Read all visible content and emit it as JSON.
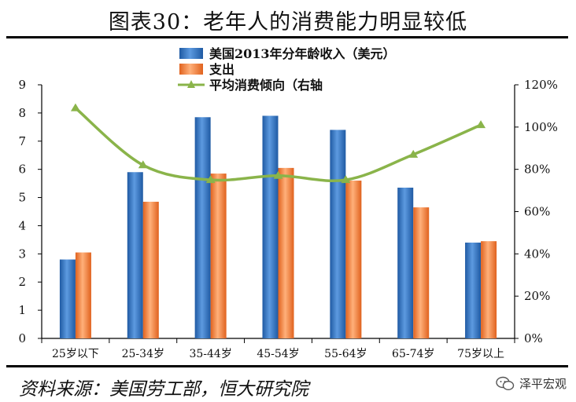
{
  "title": "图表30：老年人的消费能力明显较低",
  "source": "资料来源：美国劳工部，恒大研究院",
  "watermark": "泽平宏观",
  "watermark_icon": "wechat-icon",
  "chart_data": {
    "type": "bar+line",
    "title": "图表30：老年人的消费能力明显较低",
    "categories": [
      "25岁以下",
      "25-34岁",
      "35-44岁",
      "45-54岁",
      "55-64岁",
      "65-74岁",
      "75岁以上"
    ],
    "series": [
      {
        "name": "美国2013年分年龄收入（美元）",
        "type": "bar",
        "axis": "left",
        "color": "#2e6db5",
        "values": [
          2.8,
          5.9,
          7.85,
          7.9,
          7.4,
          5.35,
          3.4
        ]
      },
      {
        "name": "支出",
        "type": "bar",
        "axis": "left",
        "color": "#ee7b35",
        "values": [
          3.05,
          4.85,
          5.85,
          6.05,
          5.6,
          4.65,
          3.45
        ]
      },
      {
        "name": "平均消费倾向（右轴",
        "type": "line",
        "axis": "right",
        "color": "#8ab44a",
        "values": [
          109,
          82,
          75,
          77,
          75,
          87,
          101
        ]
      }
    ],
    "left_axis": {
      "min": 0,
      "max": 9,
      "ticks": [
        "0",
        "1",
        "2",
        "3",
        "4",
        "5",
        "6",
        "7",
        "8",
        "9"
      ]
    },
    "right_axis": {
      "min": 0,
      "max": 120,
      "ticks": [
        "0%",
        "20%",
        "40%",
        "60%",
        "80%",
        "100%",
        "120%"
      ]
    },
    "legend": [
      "美国2013年分年龄收入（美元）",
      "支出",
      "平均消费倾向（右轴"
    ],
    "legend_position": "top-center"
  }
}
